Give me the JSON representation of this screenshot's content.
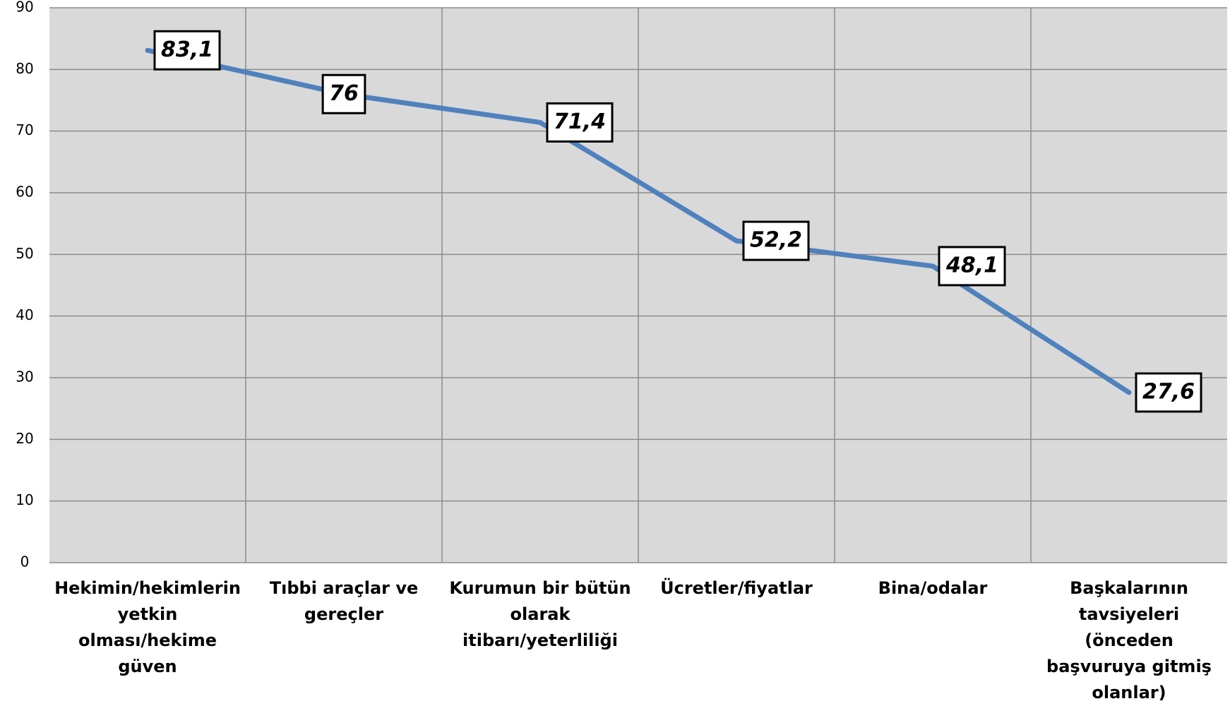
{
  "chart_data": {
    "type": "line",
    "categories": [
      "Hekimin/hekimlerin yetkin olması/hekime güven",
      "Tıbbi araçlar ve gereçler",
      "Kurumun bir bütün olarak itibarı/yeterliliği",
      "Ücretler/fiyatlar",
      "Bina/odalar",
      "Başkalarının tavsiyeleri (önceden başvuruya gitmiş olanlar)"
    ],
    "series": [
      {
        "color": "#4f81bd",
        "values": [
          83.1,
          76,
          71.4,
          52.2,
          48.1,
          27.6
        ],
        "value_labels": [
          "83,1",
          "76",
          "71,4",
          "52,2",
          "48,1",
          "27,6"
        ]
      }
    ],
    "ylim": [
      0,
      90
    ],
    "yticks": [
      0,
      10,
      20,
      30,
      40,
      50,
      60,
      70,
      80,
      90
    ],
    "grid": true
  }
}
